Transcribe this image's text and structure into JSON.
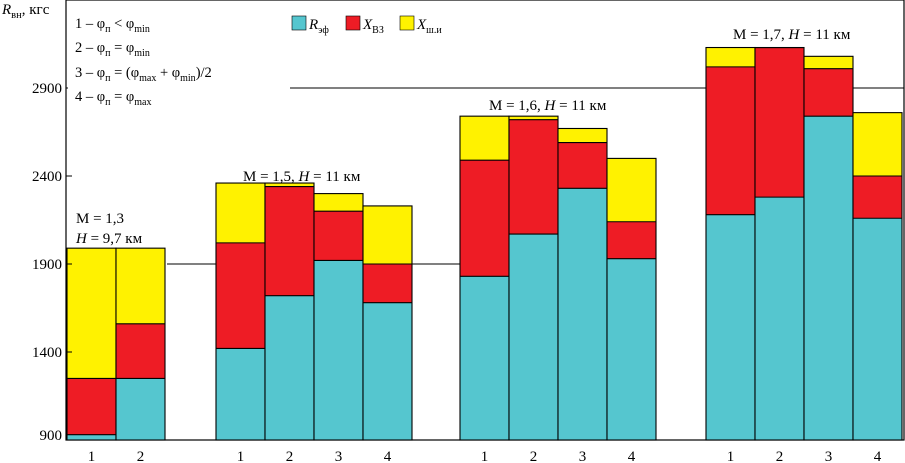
{
  "chart_data": {
    "type": "bar",
    "stacked": true,
    "ylabel": "R вн, кгс",
    "ylabel_parts": {
      "symbol": "R",
      "subscript": "вн",
      "unit": ", кгс"
    },
    "ylim": [
      900,
      3400
    ],
    "yticks": [
      {
        "value": 900,
        "label": "900"
      },
      {
        "value": 1400,
        "label": "1400"
      },
      {
        "value": 1900,
        "label": "1900"
      },
      {
        "value": 2400,
        "label": "2400"
      },
      {
        "value": 2900,
        "label": "2900"
      }
    ],
    "colors": {
      "R_eff": "#55c6cf",
      "X_vz": "#ee1c25",
      "X_shi": "#fff200"
    },
    "legend": [
      {
        "key": "R_eff",
        "symbol": "R",
        "sub": "эф"
      },
      {
        "key": "X_vz",
        "symbol": "X",
        "sub": "ВЗ"
      },
      {
        "key": "X_shi",
        "symbol": "X",
        "sub": "ш.и"
      }
    ],
    "notes": [
      "1 – φп < φmin",
      "2 – φп = φmin",
      "3 – φп = (φmax + φmin)/2",
      "4 – φп = φmax"
    ],
    "groups": [
      {
        "label": "M = 1,3 / H = 9,7 км",
        "label_line1": "M = 1,3",
        "label_line2": "H = 9,7 км",
        "reference": 1900,
        "bars": [
          {
            "category": "1",
            "R_eff": 930,
            "X_vz": 1250,
            "X_shi": 1990
          },
          {
            "category": "2",
            "R_eff": 1250,
            "X_vz": 1560,
            "X_shi": 1990
          }
        ]
      },
      {
        "label": "M = 1,5, H = 11 км",
        "reference": 1900,
        "bars": [
          {
            "category": "1",
            "R_eff": 1420,
            "X_vz": 2020,
            "X_shi": 2360
          },
          {
            "category": "2",
            "R_eff": 1720,
            "X_vz": 2340,
            "X_shi": 2360
          },
          {
            "category": "3",
            "R_eff": 1920,
            "X_vz": 2200,
            "X_shi": 2300
          },
          {
            "category": "4",
            "R_eff": 1680,
            "X_vz": 1900,
            "X_shi": 2230
          }
        ]
      },
      {
        "label": "M = 1,6, H = 11 км",
        "reference": 1900,
        "bars": [
          {
            "category": "1",
            "R_eff": 1830,
            "X_vz": 2490,
            "X_shi": 2740
          },
          {
            "category": "2",
            "R_eff": 2070,
            "X_vz": 2720,
            "X_shi": 2740
          },
          {
            "category": "3",
            "R_eff": 2330,
            "X_vz": 2590,
            "X_shi": 2670
          },
          {
            "category": "4",
            "R_eff": 1930,
            "X_vz": 2140,
            "X_shi": 2500
          }
        ]
      },
      {
        "label": "M = 1,7, H = 11 км",
        "reference": 2900,
        "bars": [
          {
            "category": "1",
            "R_eff": 2180,
            "X_vz": 3020,
            "X_shi": 3130
          },
          {
            "category": "2",
            "R_eff": 2280,
            "X_vz": 3130,
            "X_shi": 3130
          },
          {
            "category": "3",
            "R_eff": 2740,
            "X_vz": 3010,
            "X_shi": 3080
          },
          {
            "category": "4",
            "R_eff": 2160,
            "X_vz": 2400,
            "X_shi": 2760
          }
        ]
      }
    ]
  }
}
